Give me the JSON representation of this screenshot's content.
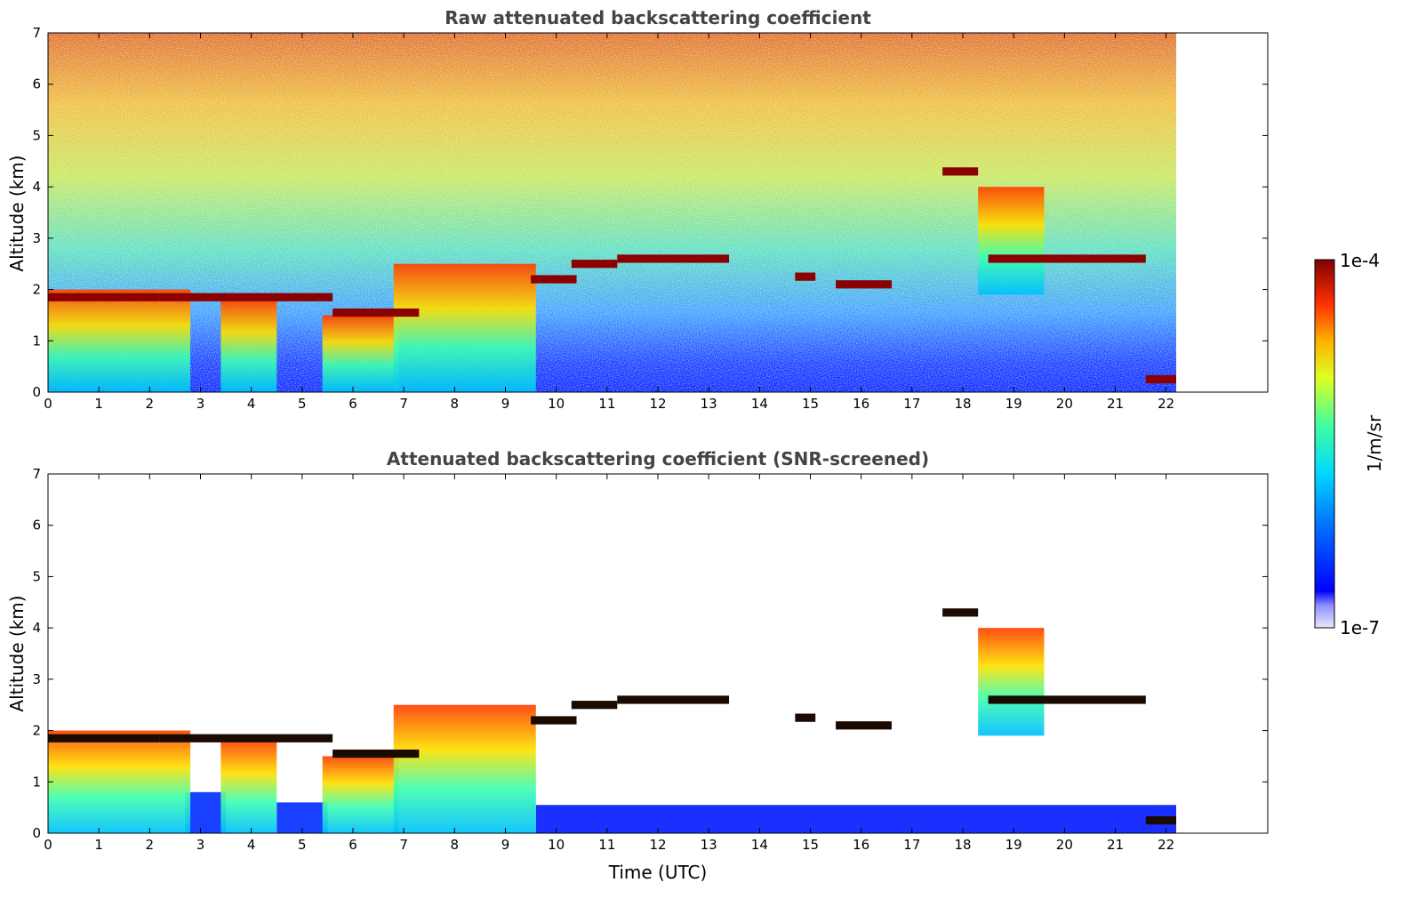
{
  "chart_data": [
    {
      "type": "heatmap",
      "title": "Raw attenuated backscattering coefficient",
      "xlabel": "",
      "ylabel": "Altitude (km)",
      "xlim": [
        0,
        24
      ],
      "ylim": [
        0,
        7
      ],
      "xticks": [
        0,
        1,
        2,
        3,
        4,
        5,
        6,
        7,
        8,
        9,
        10,
        11,
        12,
        13,
        14,
        15,
        16,
        17,
        18,
        19,
        20,
        21,
        22
      ],
      "yticks": [
        0,
        1,
        2,
        3,
        4,
        5,
        6,
        7
      ],
      "data_end_x": 22.2,
      "grid": false,
      "screened": false,
      "cloud_layers": [
        {
          "x_start": 0.0,
          "x_end": 2.2,
          "altitude": 1.85,
          "value": "high"
        },
        {
          "x_start": 2.2,
          "x_end": 5.6,
          "altitude": 1.85,
          "value": "high"
        },
        {
          "x_start": 5.6,
          "x_end": 7.3,
          "altitude": 1.55,
          "value": "high"
        },
        {
          "x_start": 9.5,
          "x_end": 10.4,
          "altitude": 2.2,
          "value": "high"
        },
        {
          "x_start": 10.3,
          "x_end": 11.2,
          "altitude": 2.5,
          "value": "high"
        },
        {
          "x_start": 11.2,
          "x_end": 13.4,
          "altitude": 2.6,
          "value": "high"
        },
        {
          "x_start": 14.7,
          "x_end": 15.1,
          "altitude": 2.25,
          "value": "high"
        },
        {
          "x_start": 15.5,
          "x_end": 16.6,
          "altitude": 2.1,
          "value": "high"
        },
        {
          "x_start": 17.6,
          "x_end": 18.3,
          "altitude": 4.3,
          "value": "high"
        },
        {
          "x_start": 18.5,
          "x_end": 21.6,
          "altitude": 2.6,
          "value": "high"
        },
        {
          "x_start": 21.6,
          "x_end": 22.2,
          "altitude": 0.25,
          "value": "high"
        }
      ],
      "aerosol_plumes": [
        {
          "x_start": 0.0,
          "x_end": 2.8,
          "top": 2.0
        },
        {
          "x_start": 3.4,
          "x_end": 4.5,
          "top": 1.8
        },
        {
          "x_start": 5.4,
          "x_end": 6.9,
          "top": 1.5
        },
        {
          "x_start": 6.8,
          "x_end": 9.6,
          "top": 2.5
        },
        {
          "x_start": 18.3,
          "x_end": 19.6,
          "top": 4.0
        }
      ]
    },
    {
      "type": "heatmap",
      "title": "Attenuated backscattering coefficient (SNR-screened)",
      "xlabel": "Time (UTC)",
      "ylabel": "Altitude (km)",
      "xlim": [
        0,
        24
      ],
      "ylim": [
        0,
        7
      ],
      "xticks": [
        0,
        1,
        2,
        3,
        4,
        5,
        6,
        7,
        8,
        9,
        10,
        11,
        12,
        13,
        14,
        15,
        16,
        17,
        18,
        19,
        20,
        21,
        22
      ],
      "yticks": [
        0,
        1,
        2,
        3,
        4,
        5,
        6,
        7
      ],
      "data_end_x": 22.2,
      "grid": false,
      "screened": true
    }
  ],
  "colorbar": {
    "label": "1/m/sr",
    "min_label": "1e-7",
    "max_label": "1e-4",
    "scale": "log",
    "colormap": "jet",
    "colors": [
      "#e6e6f5",
      "#1020ff",
      "#00c0ff",
      "#40ffb0",
      "#ffe000",
      "#ff4000",
      "#8b0000"
    ]
  }
}
